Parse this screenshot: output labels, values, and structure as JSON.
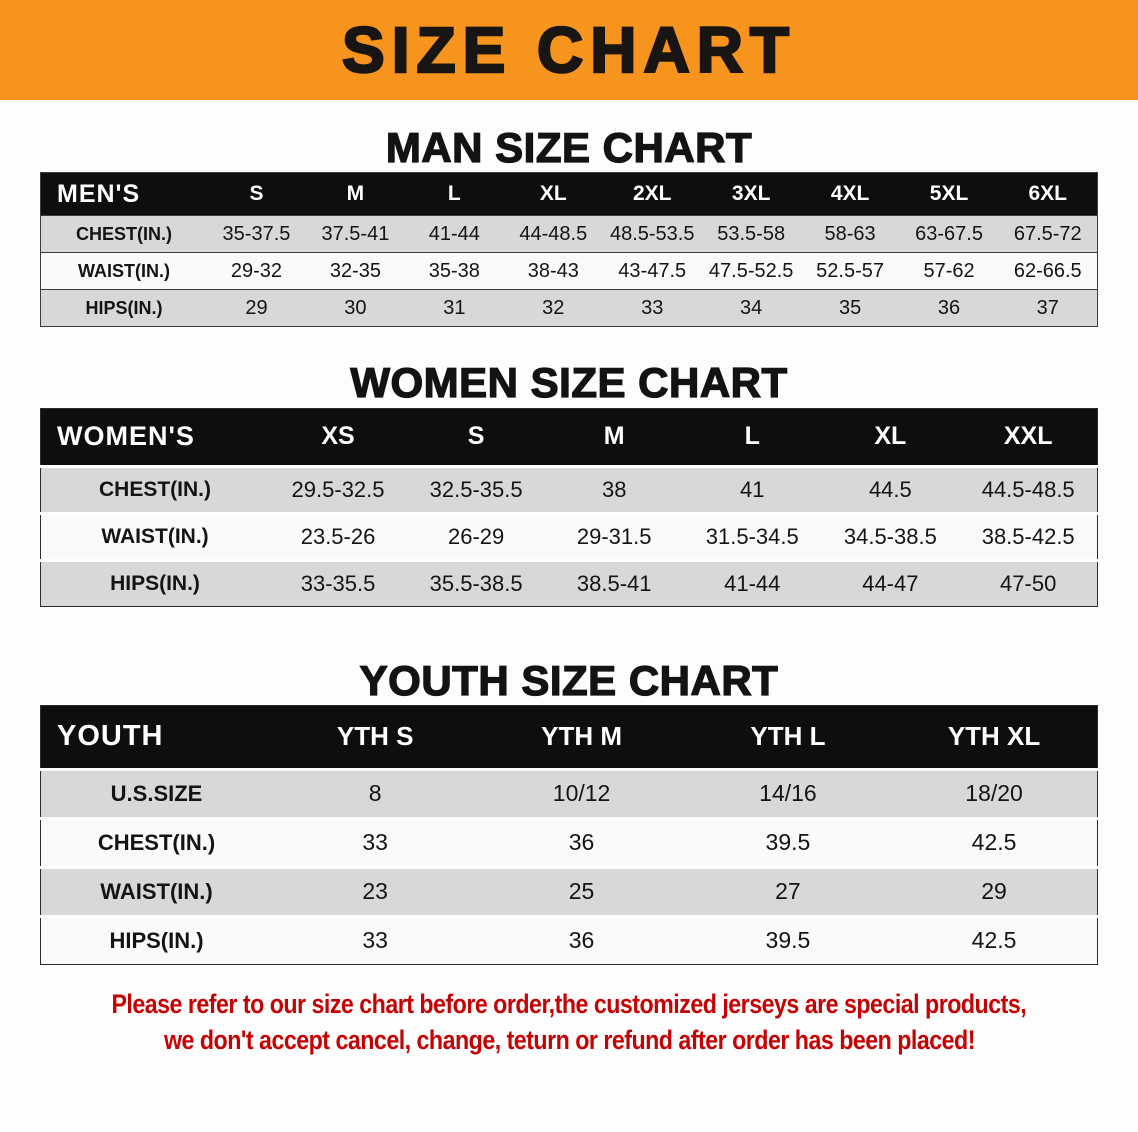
{
  "banner": {
    "title": "SIZE CHART"
  },
  "colors": {
    "banner_bg": "#F7941D",
    "header_row_bg": "#0E0E0E",
    "header_row_text": "#FFFFFF",
    "row_grey": "#D8D8D8",
    "row_white": "#FAFAFA",
    "table_text": "#141414",
    "disclaimer_red": "#C40404"
  },
  "sections": [
    {
      "heading": "MAN SIZE CHART",
      "table": {
        "header": [
          "MEN'S",
          "S",
          "M",
          "L",
          "XL",
          "2XL",
          "3XL",
          "4XL",
          "5XL",
          "6XL"
        ],
        "rows": [
          [
            "CHEST(IN.)",
            "35-37.5",
            "37.5-41",
            "41-44",
            "44-48.5",
            "48.5-53.5",
            "53.5-58",
            "58-63",
            "63-67.5",
            "67.5-72"
          ],
          [
            "WAIST(IN.)",
            "29-32",
            "32-35",
            "35-38",
            "38-43",
            "43-47.5",
            "47.5-52.5",
            "52.5-57",
            "57-62",
            "62-66.5"
          ],
          [
            "HIPS(IN.)",
            "29",
            "30",
            "31",
            "32",
            "33",
            "34",
            "35",
            "36",
            "37"
          ]
        ]
      }
    },
    {
      "heading": "WOMEN SIZE CHART",
      "table": {
        "header": [
          "WOMEN'S",
          "XS",
          "S",
          "M",
          "L",
          "XL",
          "XXL"
        ],
        "rows": [
          [
            "CHEST(IN.)",
            "29.5-32.5",
            "32.5-35.5",
            "38",
            "41",
            "44.5",
            "44.5-48.5"
          ],
          [
            "WAIST(IN.)",
            "23.5-26",
            "26-29",
            "29-31.5",
            "31.5-34.5",
            "34.5-38.5",
            "38.5-42.5"
          ],
          [
            "HIPS(IN.)",
            "33-35.5",
            "35.5-38.5",
            "38.5-41",
            "41-44",
            "44-47",
            "47-50"
          ]
        ]
      }
    },
    {
      "heading": "YOUTH SIZE CHART",
      "table": {
        "header": [
          "YOUTH",
          "YTH S",
          "YTH M",
          "YTH L",
          "YTH XL"
        ],
        "rows": [
          [
            "U.S.SIZE",
            "8",
            "10/12",
            "14/16",
            "18/20"
          ],
          [
            "CHEST(IN.)",
            "33",
            "36",
            "39.5",
            "42.5"
          ],
          [
            "WAIST(IN.)",
            "23",
            "25",
            "27",
            "29"
          ],
          [
            "HIPS(IN.)",
            "33",
            "36",
            "39.5",
            "42.5"
          ]
        ]
      }
    }
  ],
  "disclaimer": {
    "line1": "Please refer to our size chart before order,the customized jerseys are special products,",
    "line2": "we don't accept cancel, change, teturn or refund after order has been placed!"
  }
}
